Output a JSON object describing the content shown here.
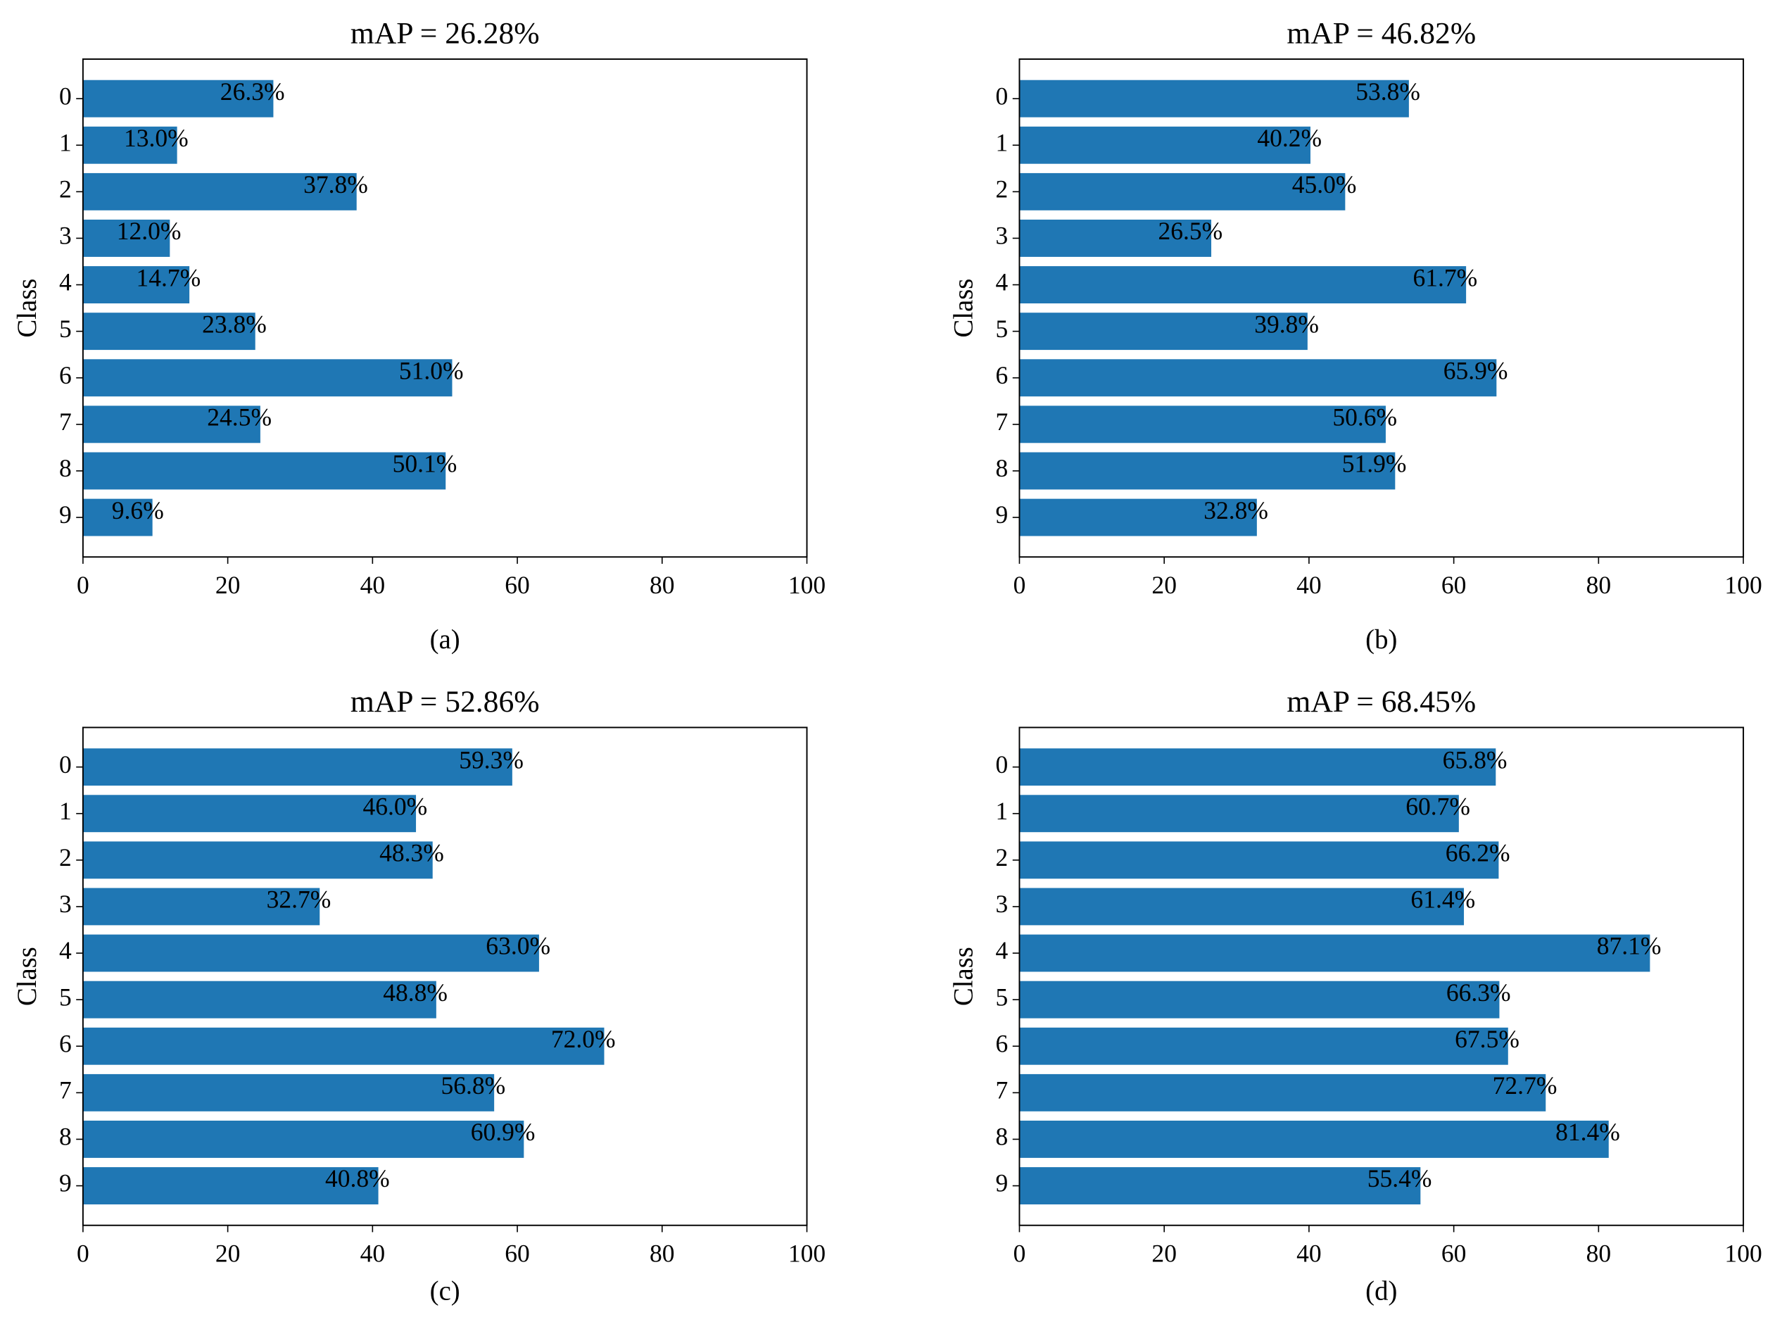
{
  "chart_data": [
    {
      "type": "bar",
      "title": "mAP = 26.28%",
      "ylabel": "Class",
      "caption": "(a)",
      "color": "#1f77b4",
      "categories": [
        "0",
        "1",
        "2",
        "3",
        "4",
        "5",
        "6",
        "7",
        "8",
        "9"
      ],
      "values": [
        26.3,
        13.0,
        37.8,
        12.0,
        14.7,
        23.8,
        51.0,
        24.5,
        50.1,
        9.6
      ],
      "value_labels": [
        "26.3%",
        "13.0%",
        "37.8%",
        "12.0%",
        "14.7%",
        "23.8%",
        "51.0%",
        "24.5%",
        "50.1%",
        "9.6%"
      ],
      "xlim": [
        0,
        100
      ],
      "xticks": [
        0,
        20,
        40,
        60,
        80,
        100
      ]
    },
    {
      "type": "bar",
      "title": "mAP = 46.82%",
      "ylabel": "Class",
      "caption": "(b)",
      "color": "#1f77b4",
      "categories": [
        "0",
        "1",
        "2",
        "3",
        "4",
        "5",
        "6",
        "7",
        "8",
        "9"
      ],
      "values": [
        53.8,
        40.2,
        45.0,
        26.5,
        61.7,
        39.8,
        65.9,
        50.6,
        51.9,
        32.8
      ],
      "value_labels": [
        "53.8%",
        "40.2%",
        "45.0%",
        "26.5%",
        "61.7%",
        "39.8%",
        "65.9%",
        "50.6%",
        "51.9%",
        "32.8%"
      ],
      "xlim": [
        0,
        100
      ],
      "xticks": [
        0,
        20,
        40,
        60,
        80,
        100
      ]
    },
    {
      "type": "bar",
      "title": "mAP = 52.86%",
      "ylabel": "Class",
      "caption": "(c)",
      "color": "#1f77b4",
      "categories": [
        "0",
        "1",
        "2",
        "3",
        "4",
        "5",
        "6",
        "7",
        "8",
        "9"
      ],
      "values": [
        59.3,
        46.0,
        48.3,
        32.7,
        63.0,
        48.8,
        72.0,
        56.8,
        60.9,
        40.8
      ],
      "value_labels": [
        "59.3%",
        "46.0%",
        "48.3%",
        "32.7%",
        "63.0%",
        "48.8%",
        "72.0%",
        "56.8%",
        "60.9%",
        "40.8%"
      ],
      "xlim": [
        0,
        100
      ],
      "xticks": [
        0,
        20,
        40,
        60,
        80,
        100
      ]
    },
    {
      "type": "bar",
      "title": "mAP = 68.45%",
      "ylabel": "Class",
      "caption": "(d)",
      "color": "#1f77b4",
      "categories": [
        "0",
        "1",
        "2",
        "3",
        "4",
        "5",
        "6",
        "7",
        "8",
        "9"
      ],
      "values": [
        65.8,
        60.7,
        66.2,
        61.4,
        87.1,
        66.3,
        67.5,
        72.7,
        81.4,
        55.4
      ],
      "value_labels": [
        "65.8%",
        "60.7%",
        "66.2%",
        "61.4%",
        "87.1%",
        "66.3%",
        "67.5%",
        "72.7%",
        "81.4%",
        "55.4%"
      ],
      "xlim": [
        0,
        100
      ],
      "xticks": [
        0,
        20,
        40,
        60,
        80,
        100
      ]
    }
  ]
}
